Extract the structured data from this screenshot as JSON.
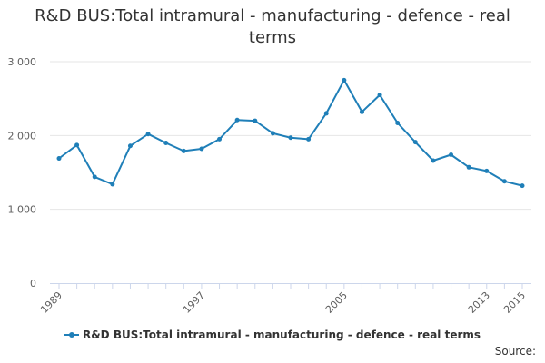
{
  "title_line1": "R&D BUS:Total intramural - manufacturing - defence - real",
  "title_line2": "terms",
  "legend": {
    "label": "R&D BUS:Total intramural - manufacturing - defence - real terms",
    "color": "#1f7fb8"
  },
  "source": "Source:",
  "colors": {
    "series": "#1f7fb8",
    "grid": "#e6e6e6",
    "axis": "#ccd6eb"
  },
  "chart_data": {
    "type": "line",
    "x": [
      1989,
      1990,
      1991,
      1992,
      1993,
      1994,
      1995,
      1996,
      1997,
      1998,
      1999,
      2000,
      2001,
      2002,
      2003,
      2004,
      2005,
      2006,
      2007,
      2008,
      2009,
      2010,
      2011,
      2012,
      2013,
      2014,
      2015
    ],
    "series": [
      {
        "name": "R&D BUS:Total intramural - manufacturing - defence - real terms",
        "values": [
          1690,
          1870,
          1440,
          1340,
          1860,
          2020,
          1900,
          1790,
          1820,
          1950,
          2210,
          2200,
          2030,
          1970,
          1950,
          2300,
          2750,
          2320,
          2550,
          2170,
          1910,
          1660,
          1740,
          1570,
          1520,
          1380,
          1320
        ]
      }
    ],
    "y_ticks": [
      0,
      1000,
      2000,
      3000
    ],
    "y_tick_labels": [
      "0",
      "1 000",
      "2 000",
      "3 000"
    ],
    "x_tick_labels": [
      "1989",
      "1997",
      "2005",
      "2013",
      "2015"
    ],
    "x_tick_values": [
      1989,
      1997,
      2005,
      2013,
      2015
    ],
    "ylim": [
      0,
      3000
    ],
    "grid": true,
    "legend_position": "bottom"
  }
}
